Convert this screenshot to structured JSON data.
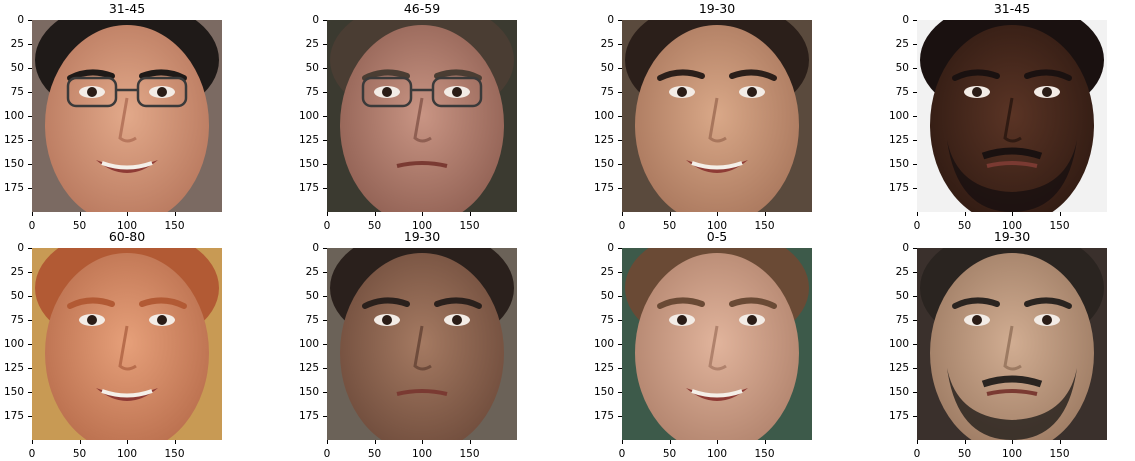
{
  "panels": [
    {
      "title": "31-45",
      "skin": "#e2a98a",
      "skin_shadow": "#b7775d",
      "hair": "#1f1a18",
      "bg": "#7b6a62",
      "glasses": true,
      "beard": false,
      "smile": true
    },
    {
      "title": "46-59",
      "skin": "#c99584",
      "skin_shadow": "#8f5f52",
      "hair": "#4a3d33",
      "bg": "#3b3a30",
      "glasses": true,
      "beard": false,
      "smile": false
    },
    {
      "title": "19-30",
      "skin": "#d9a888",
      "skin_shadow": "#a8765c",
      "hair": "#2b1f1a",
      "bg": "#5a4a3d",
      "glasses": false,
      "beard": false,
      "smile": true
    },
    {
      "title": "31-45",
      "skin": "#5a3425",
      "skin_shadow": "#2f1a12",
      "hair": "#1a1110",
      "bg": "#f2f2f2",
      "glasses": false,
      "beard": true,
      "smile": false
    },
    {
      "title": "60-80",
      "skin": "#e6a07a",
      "skin_shadow": "#b86d4c",
      "hair": "#b25a34",
      "bg": "#c89a54",
      "glasses": false,
      "beard": false,
      "smile": true
    },
    {
      "title": "19-30",
      "skin": "#a57a62",
      "skin_shadow": "#6e4b3b",
      "hair": "#2a201c",
      "bg": "#6b6258",
      "glasses": false,
      "beard": false,
      "smile": false
    },
    {
      "title": "0-5",
      "skin": "#e1b49c",
      "skin_shadow": "#b0826c",
      "hair": "#6a4a35",
      "bg": "#3d5a4a",
      "glasses": false,
      "beard": false,
      "smile": true
    },
    {
      "title": "19-30",
      "skin": "#d1ad92",
      "skin_shadow": "#9c7a62",
      "hair": "#2a2420",
      "bg": "#3a302c",
      "glasses": false,
      "beard": true,
      "smile": false
    }
  ],
  "y_ticks": [
    "0",
    "25",
    "50",
    "75",
    "100",
    "125",
    "150",
    "175"
  ],
  "x_ticks": [
    "0",
    "50",
    "100",
    "150"
  ]
}
